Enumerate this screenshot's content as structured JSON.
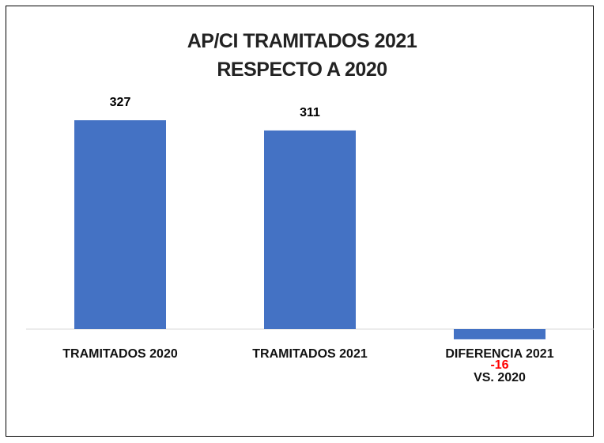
{
  "chart_data": {
    "type": "bar",
    "title": "AP/CI TRAMITADOS 2021 RESPECTO A 2020",
    "categories": [
      "TRAMITADOS 2020",
      "TRAMITADOS 2021",
      "DIFERENCIA 2021 VS. 2020"
    ],
    "values": [
      327,
      311,
      -16
    ],
    "color": "#4472c4",
    "label_color": "#000000",
    "negative_label_color": "#ff0000"
  }
}
